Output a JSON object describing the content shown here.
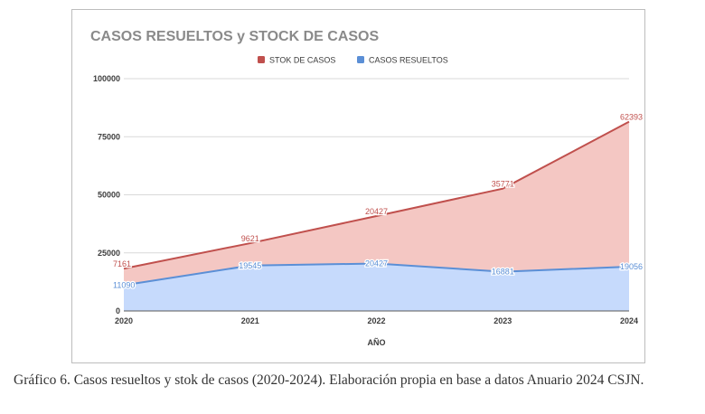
{
  "colors": {
    "stock_line": "#c0504d",
    "stock_fill": "#f4c7c3",
    "resueltos_line": "#5b8fd6",
    "resueltos_fill": "#c6dafc",
    "axis_text": "#3c3c3c",
    "title_text": "#8a8a8a",
    "grid": "#d9d9d9"
  },
  "chart_data": {
    "type": "area",
    "title": "CASOS RESUELTOS y STOCK DE CASOS",
    "xlabel": "AÑO",
    "ylabel": "",
    "x": [
      "2020",
      "2021",
      "2022",
      "2023",
      "2024"
    ],
    "ylim": [
      0,
      100000
    ],
    "yticks": [
      0,
      25000,
      50000,
      75000,
      100000
    ],
    "legend_position": "top-center",
    "stacked": true,
    "grid": "horizontal",
    "series": [
      {
        "name": "STOK DE CASOS",
        "values": [
          7161,
          9621,
          20427,
          35771,
          62393
        ],
        "labels": [
          "7161",
          "9621",
          "20427",
          "35771",
          "62393"
        ],
        "color": "#c0504d"
      },
      {
        "name": "CASOS RESUELTOS",
        "values": [
          11090,
          19545,
          20427,
          16881,
          19056
        ],
        "labels": [
          "11090",
          "19545",
          "20427",
          "16881",
          "19056"
        ],
        "color": "#5b8fd6"
      }
    ]
  },
  "caption": "Gráfico 6. Casos resueltos y stok de casos (2020-2024). Elaboración propia en base a datos Anuario 2024 CSJN."
}
